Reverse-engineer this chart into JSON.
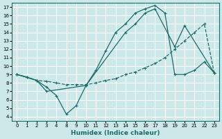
{
  "xlabel": "Humidex (Indice chaleur)",
  "bg_color": "#cce8e8",
  "grid_color": "#ffffff",
  "line_color": "#1a6b6b",
  "xlim": [
    -0.5,
    20.5
  ],
  "ylim": [
    3.5,
    17.5
  ],
  "xtick_positions": [
    0,
    1,
    2,
    3,
    4,
    5,
    6,
    7,
    8,
    9,
    10,
    11,
    12,
    13,
    14,
    15,
    16,
    17,
    18,
    19,
    20
  ],
  "xtick_labels": [
    "0",
    "1",
    "2",
    "3",
    "4",
    "8",
    "9",
    "10",
    "11",
    "12",
    "13",
    "14",
    "15",
    "16",
    "17",
    "18",
    "19",
    "20",
    "21",
    "22",
    "23"
  ],
  "yticks": [
    4,
    5,
    6,
    7,
    8,
    9,
    10,
    11,
    12,
    13,
    14,
    15,
    16,
    17
  ],
  "line1_x": [
    0,
    1,
    2,
    3,
    4,
    5,
    6,
    7,
    8,
    9,
    10,
    11,
    12,
    13,
    14,
    15,
    16,
    17,
    18,
    19,
    20
  ],
  "line1_y": [
    9,
    8.7,
    8.3,
    7.5,
    6.5,
    4.3,
    5.3,
    7.7,
    9.5,
    11.8,
    14.0,
    15.0,
    16.3,
    16.8,
    17.2,
    16.3,
    9.0,
    9.0,
    9.5,
    10.5,
    9.2
  ],
  "line2_x": [
    0,
    1,
    2,
    3,
    4,
    5,
    6,
    7,
    8,
    9,
    10,
    11,
    12,
    13,
    14,
    15,
    16,
    17,
    18,
    19,
    20
  ],
  "line2_y": [
    9,
    8.7,
    8.3,
    8.2,
    8.0,
    7.8,
    7.8,
    7.8,
    8.0,
    8.3,
    8.5,
    9.0,
    9.3,
    9.8,
    10.3,
    11.0,
    12.0,
    13.0,
    14.0,
    15.0,
    9.2
  ],
  "line3_x": [
    0,
    2,
    3,
    7,
    11,
    12,
    13,
    14,
    16,
    17,
    20
  ],
  "line3_y": [
    9,
    8.3,
    7.0,
    7.7,
    14.0,
    15.0,
    16.3,
    16.8,
    12.3,
    14.8,
    9.2
  ]
}
